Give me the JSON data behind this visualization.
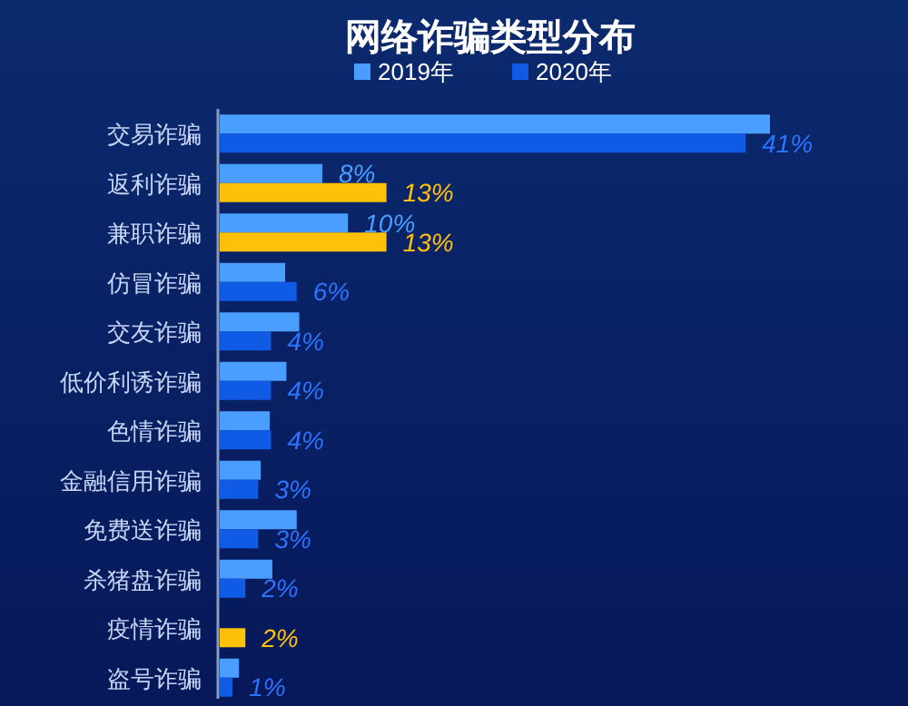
{
  "chart_data": {
    "type": "bar",
    "orientation": "horizontal",
    "title": "网络诈骗类型分布",
    "legend": "top",
    "categories": [
      "交易诈骗",
      "返利诈骗",
      "兼职诈骗",
      "仿冒诈骗",
      "交友诈骗",
      "低价利诱诈骗",
      "色情诈骗",
      "金融信用诈骗",
      "免费送诈骗",
      "杀猪盘诈骗",
      "疫情诈骗",
      "盗号诈骗"
    ],
    "series": [
      {
        "name": "2019年",
        "color": "#4a9eff",
        "values": [
          42.9,
          8,
          10,
          5.1,
          6.2,
          5.2,
          3.9,
          3.2,
          6.0,
          4.1,
          null,
          1.5
        ],
        "value_labels": [
          null,
          "8%",
          "10%",
          null,
          null,
          null,
          null,
          null,
          null,
          null,
          null,
          null
        ]
      },
      {
        "name": "2020年",
        "color": "#0f5be6",
        "colors": [
          "#0f5be6",
          "#ffc107",
          "#ffc107",
          "#0f5be6",
          "#0f5be6",
          "#0f5be6",
          "#0f5be6",
          "#0f5be6",
          "#0f5be6",
          "#0f5be6",
          "#ffc107",
          "#0f5be6"
        ],
        "values": [
          41,
          13,
          13,
          6,
          4,
          4,
          4,
          3,
          3,
          2,
          2,
          1
        ],
        "value_labels": [
          "41%",
          "13%",
          "13%",
          "6%",
          "4%",
          "4%",
          "4%",
          "3%",
          "3%",
          "2%",
          "2%",
          "1%"
        ]
      }
    ]
  }
}
